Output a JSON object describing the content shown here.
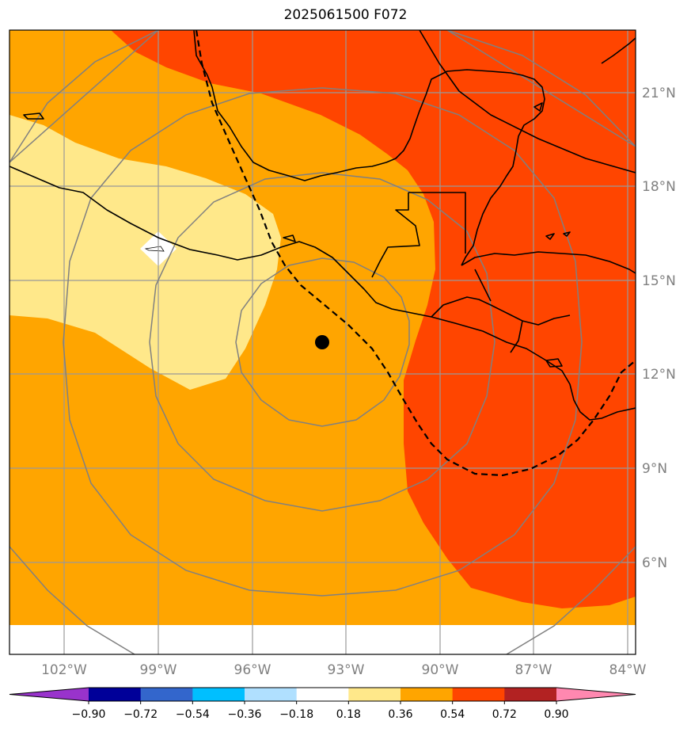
{
  "title": "2025061500 F072",
  "map": {
    "lon_labels": [
      "102°W",
      "99°W",
      "96°W",
      "93°W",
      "90°W",
      "87°W",
      "84°W"
    ],
    "lat_labels": [
      "21°N",
      "18°N",
      "15°N",
      "12°N",
      "9°N",
      "6°N"
    ],
    "lon_values": [
      -102,
      -99,
      -96,
      -93,
      -90,
      -87,
      -84
    ],
    "lat_values": [
      21,
      18,
      15,
      12,
      9,
      6
    ],
    "extent": {
      "lon_min": -103.7,
      "lon_max": -83.8,
      "lat_min": 3.1,
      "lat_max": 23.0
    },
    "center_marker": {
      "lon": -93.75,
      "lat": 13.0
    },
    "gridline_color": "#999999",
    "label_color": "#808080"
  },
  "colorbar": {
    "tick_labels": [
      "−0.90",
      "−0.72",
      "−0.54",
      "−0.36",
      "−0.18",
      "0.18",
      "0.36",
      "0.54",
      "0.72",
      "0.90"
    ],
    "colors": [
      "#9933cc",
      "#000099",
      "#3366cc",
      "#00bfff",
      "#b0e0ff",
      "#ffffff",
      "#ffe88a",
      "#ffa500",
      "#ff4500",
      "#b22222",
      "#ff88b0"
    ],
    "extend": "both"
  },
  "fill_colors": {
    "light_yellow": "#ffe88a",
    "orange": "#ffa500",
    "red_orange": "#ff4500",
    "white": "#ffffff"
  }
}
